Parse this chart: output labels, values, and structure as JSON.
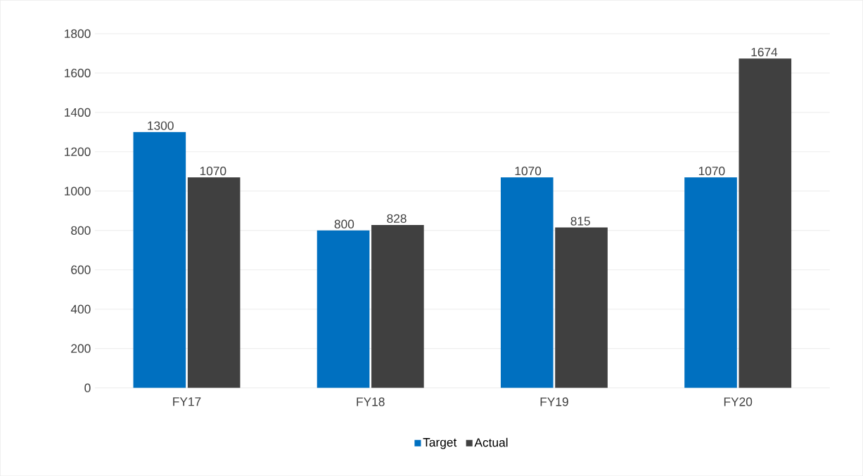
{
  "chart_data": {
    "type": "bar",
    "categories": [
      "FY17",
      "FY18",
      "FY19",
      "FY20"
    ],
    "series": [
      {
        "name": "Target",
        "color": "#0070c0",
        "values": [
          1300,
          800,
          1070,
          1070
        ]
      },
      {
        "name": "Actual",
        "color": "#404040",
        "values": [
          1070,
          828,
          815,
          1674
        ]
      }
    ],
    "ylim": [
      0,
      1800
    ],
    "yticks": [
      0,
      200,
      400,
      600,
      800,
      1000,
      1200,
      1400,
      1600,
      1800
    ],
    "grid": "y",
    "legend": "bottom",
    "data_labels": true
  }
}
